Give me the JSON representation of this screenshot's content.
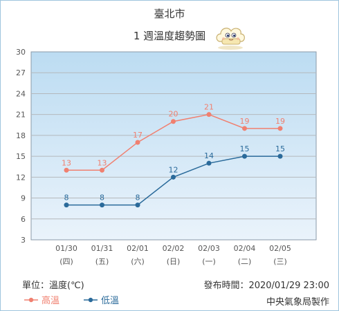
{
  "title": "臺北市",
  "subtitle": "1 週溫度趨勢圖",
  "unit_label": "單位：溫度(℃)",
  "publish_label": "發布時間：2020/01/29 23:00",
  "agency_label": "中央氣象局製作",
  "colors": {
    "high": "#f08070",
    "low": "#2a6a9a",
    "plot_top": "#bcdcf2",
    "plot_bottom": "#eaf3fb",
    "grid": "#b4b8bc"
  },
  "chart_data": {
    "type": "line",
    "categories": [
      "01/30",
      "01/31",
      "02/01",
      "02/02",
      "02/03",
      "02/04",
      "02/05"
    ],
    "weekdays": [
      "(四)",
      "(五)",
      "(六)",
      "(日)",
      "(一)",
      "(二)",
      "(三)"
    ],
    "ylim": [
      3,
      30
    ],
    "yticks": [
      3,
      6,
      9,
      12,
      15,
      18,
      21,
      24,
      27,
      30
    ],
    "grid": true,
    "legend_position": "bottom-left",
    "series": [
      {
        "name": "高溫",
        "key": "high",
        "values": [
          13,
          13,
          17,
          20,
          21,
          19,
          19
        ]
      },
      {
        "name": "低溫",
        "key": "low",
        "values": [
          8,
          8,
          8,
          12,
          14,
          15,
          15
        ]
      }
    ]
  }
}
